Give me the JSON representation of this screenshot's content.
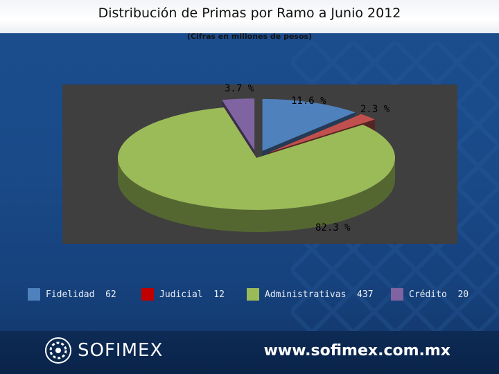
{
  "slide": {
    "title": "Distribución de Primas por Ramo a Junio 2012",
    "subtitle": "(Cifras en millones de pesos)"
  },
  "chart_data": {
    "type": "pie",
    "title": "Distribución de Primas por Ramo a Junio 2012",
    "subtitle": "(Cifras en millones de pesos)",
    "three_d": true,
    "exploded": true,
    "legend_position": "bottom",
    "categories": [
      "Fidelidad",
      "Judicial",
      "Administrativas",
      "Crédito"
    ],
    "values": [
      62,
      12,
      437,
      20
    ],
    "percent_labels": [
      "11.6 %",
      "2.3 %",
      "82.3 %",
      "3.7 %"
    ],
    "colors": [
      "#4f81bd",
      "#c0504d",
      "#9bbb59",
      "#8064a2"
    ]
  },
  "legend": {
    "items": [
      {
        "label": "Fidelidad  62",
        "color": "#4f81bd"
      },
      {
        "label": "Judicial  12",
        "color": "#c00000"
      },
      {
        "label": "Administrativas  437",
        "color": "#9bbb59"
      },
      {
        "label": "Crédito  20",
        "color": "#8064a2"
      }
    ]
  },
  "footer": {
    "brand": "SOFIMEX",
    "website": "www.sofimex.com.mx"
  },
  "colors": {
    "background": "#1a4a88",
    "plot_area": "#404040",
    "footer": "#0d2b55"
  }
}
